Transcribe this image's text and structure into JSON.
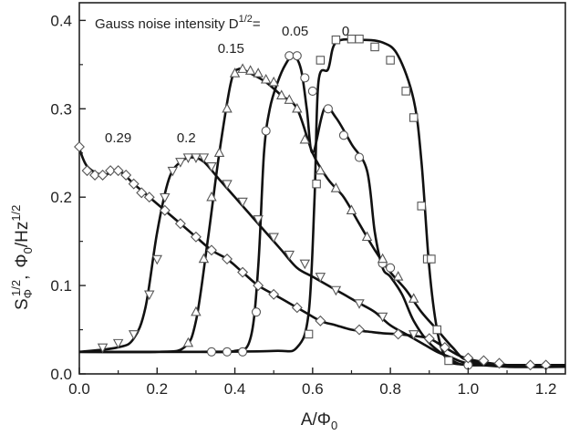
{
  "chart_data": {
    "type": "line",
    "title": "Gauss noise intensity D",
    "title_sup": "1/2",
    "title_suffix": "=",
    "xlabel_main": "A/Φ",
    "xlabel_sub": "0",
    "ylabel_parts": {
      "s": "S",
      "s_sub": "Φ",
      "s_sup": "1/2",
      "sep": ",",
      "phi": "Φ",
      "phi_sub": "0",
      "slash": "/Hz",
      "hz_sup": "1/2"
    },
    "xlim": [
      0.0,
      1.25
    ],
    "ylim": [
      0.0,
      0.42
    ],
    "x_ticks": [
      0.0,
      0.2,
      0.4,
      0.6,
      0.8,
      1.0,
      1.2
    ],
    "x_tick_labels": [
      "0.0",
      "0.2",
      "0.4",
      "0.6",
      "0.8",
      "1.0",
      "1.2"
    ],
    "y_ticks": [
      0.0,
      0.1,
      0.2,
      0.3,
      0.4
    ],
    "y_tick_labels": [
      "0.0",
      "0.1",
      "0.2",
      "0.3",
      "0.4"
    ],
    "grid": false,
    "annotations": [
      {
        "text": "0",
        "x": 0.685,
        "y": 0.383
      },
      {
        "text": "0.05",
        "x": 0.555,
        "y": 0.383
      },
      {
        "text": "0.15",
        "x": 0.39,
        "y": 0.363
      },
      {
        "text": "0.2",
        "x": 0.275,
        "y": 0.262
      },
      {
        "text": "0.29",
        "x": 0.1,
        "y": 0.262
      }
    ],
    "series": [
      {
        "label": "0",
        "marker": "square",
        "curve": [
          [
            0.0,
            0.025
          ],
          [
            0.3,
            0.025
          ],
          [
            0.5,
            0.026
          ],
          [
            0.56,
            0.03
          ],
          [
            0.59,
            0.07
          ],
          [
            0.605,
            0.2
          ],
          [
            0.615,
            0.33
          ],
          [
            0.64,
            0.345
          ],
          [
            0.66,
            0.375
          ],
          [
            0.72,
            0.378
          ],
          [
            0.78,
            0.375
          ],
          [
            0.82,
            0.36
          ],
          [
            0.86,
            0.31
          ],
          [
            0.88,
            0.24
          ],
          [
            0.9,
            0.12
          ],
          [
            0.92,
            0.05
          ],
          [
            0.94,
            0.02
          ],
          [
            0.96,
            0.012
          ],
          [
            1.05,
            0.01
          ],
          [
            1.25,
            0.01
          ]
        ],
        "points": [
          [
            0.59,
            0.045
          ],
          [
            0.61,
            0.215
          ],
          [
            0.62,
            0.355
          ],
          [
            0.66,
            0.378
          ],
          [
            0.7,
            0.379
          ],
          [
            0.72,
            0.379
          ],
          [
            0.76,
            0.37
          ],
          [
            0.8,
            0.355
          ],
          [
            0.84,
            0.32
          ],
          [
            0.86,
            0.29
          ],
          [
            0.88,
            0.19
          ],
          [
            0.895,
            0.13
          ],
          [
            0.905,
            0.13
          ],
          [
            0.92,
            0.05
          ],
          [
            0.95,
            0.015
          ]
        ]
      },
      {
        "label": "0.05",
        "marker": "circle",
        "curve": [
          [
            0.0,
            0.025
          ],
          [
            0.3,
            0.025
          ],
          [
            0.4,
            0.026
          ],
          [
            0.44,
            0.04
          ],
          [
            0.46,
            0.12
          ],
          [
            0.475,
            0.25
          ],
          [
            0.49,
            0.3
          ],
          [
            0.51,
            0.33
          ],
          [
            0.53,
            0.35
          ],
          [
            0.55,
            0.36
          ],
          [
            0.57,
            0.345
          ],
          [
            0.585,
            0.3
          ],
          [
            0.6,
            0.25
          ],
          [
            0.63,
            0.3
          ],
          [
            0.66,
            0.29
          ],
          [
            0.7,
            0.26
          ],
          [
            0.74,
            0.23
          ],
          [
            0.76,
            0.16
          ],
          [
            0.78,
            0.12
          ],
          [
            0.8,
            0.11
          ],
          [
            0.83,
            0.09
          ],
          [
            0.86,
            0.06
          ],
          [
            0.9,
            0.035
          ],
          [
            0.96,
            0.015
          ],
          [
            1.0,
            0.01
          ],
          [
            1.1,
            0.01
          ],
          [
            1.25,
            0.01
          ]
        ],
        "points": [
          [
            0.34,
            0.025
          ],
          [
            0.38,
            0.025
          ],
          [
            0.42,
            0.025
          ],
          [
            0.455,
            0.07
          ],
          [
            0.48,
            0.275
          ],
          [
            0.54,
            0.36
          ],
          [
            0.56,
            0.36
          ],
          [
            0.58,
            0.335
          ],
          [
            0.6,
            0.32
          ],
          [
            0.64,
            0.3
          ],
          [
            0.68,
            0.27
          ],
          [
            0.72,
            0.245
          ],
          [
            0.78,
            0.125
          ],
          [
            0.8,
            0.12
          ],
          [
            1.0,
            0.01
          ]
        ]
      },
      {
        "label": "0.15",
        "marker": "triangle-up",
        "curve": [
          [
            0.0,
            0.025
          ],
          [
            0.2,
            0.025
          ],
          [
            0.27,
            0.03
          ],
          [
            0.3,
            0.06
          ],
          [
            0.33,
            0.15
          ],
          [
            0.36,
            0.25
          ],
          [
            0.39,
            0.33
          ],
          [
            0.41,
            0.345
          ],
          [
            0.44,
            0.34
          ],
          [
            0.48,
            0.33
          ],
          [
            0.52,
            0.315
          ],
          [
            0.56,
            0.3
          ],
          [
            0.6,
            0.25
          ],
          [
            0.64,
            0.22
          ],
          [
            0.68,
            0.2
          ],
          [
            0.72,
            0.17
          ],
          [
            0.76,
            0.14
          ],
          [
            0.8,
            0.115
          ],
          [
            0.84,
            0.095
          ],
          [
            0.88,
            0.07
          ],
          [
            0.92,
            0.05
          ],
          [
            0.96,
            0.03
          ],
          [
            1.0,
            0.015
          ],
          [
            1.1,
            0.01
          ],
          [
            1.25,
            0.01
          ]
        ],
        "points": [
          [
            0.28,
            0.035
          ],
          [
            0.3,
            0.07
          ],
          [
            0.32,
            0.13
          ],
          [
            0.34,
            0.2
          ],
          [
            0.36,
            0.25
          ],
          [
            0.38,
            0.3
          ],
          [
            0.4,
            0.34
          ],
          [
            0.42,
            0.345
          ],
          [
            0.44,
            0.343
          ],
          [
            0.46,
            0.34
          ],
          [
            0.48,
            0.333
          ],
          [
            0.5,
            0.33
          ],
          [
            0.52,
            0.315
          ],
          [
            0.54,
            0.31
          ],
          [
            0.56,
            0.3
          ],
          [
            0.58,
            0.265
          ],
          [
            0.62,
            0.23
          ],
          [
            0.66,
            0.21
          ],
          [
            0.7,
            0.185
          ],
          [
            0.74,
            0.155
          ],
          [
            0.78,
            0.13
          ],
          [
            0.82,
            0.11
          ],
          [
            0.86,
            0.085
          ]
        ]
      },
      {
        "label": "0.2",
        "marker": "triangle-down",
        "curve": [
          [
            0.0,
            0.025
          ],
          [
            0.1,
            0.03
          ],
          [
            0.14,
            0.04
          ],
          [
            0.17,
            0.075
          ],
          [
            0.2,
            0.16
          ],
          [
            0.23,
            0.22
          ],
          [
            0.26,
            0.24
          ],
          [
            0.29,
            0.245
          ],
          [
            0.32,
            0.24
          ],
          [
            0.36,
            0.22
          ],
          [
            0.4,
            0.2
          ],
          [
            0.44,
            0.18
          ],
          [
            0.48,
            0.16
          ],
          [
            0.52,
            0.14
          ],
          [
            0.56,
            0.12
          ],
          [
            0.6,
            0.11
          ],
          [
            0.64,
            0.1
          ],
          [
            0.68,
            0.09
          ],
          [
            0.72,
            0.08
          ],
          [
            0.76,
            0.07
          ],
          [
            0.8,
            0.055
          ],
          [
            0.84,
            0.045
          ],
          [
            0.88,
            0.035
          ],
          [
            0.92,
            0.025
          ],
          [
            0.96,
            0.018
          ],
          [
            1.0,
            0.012
          ],
          [
            1.1,
            0.008
          ],
          [
            1.25,
            0.008
          ]
        ],
        "points": [
          [
            0.06,
            0.03
          ],
          [
            0.1,
            0.035
          ],
          [
            0.14,
            0.045
          ],
          [
            0.18,
            0.09
          ],
          [
            0.2,
            0.13
          ],
          [
            0.22,
            0.2
          ],
          [
            0.24,
            0.23
          ],
          [
            0.26,
            0.24
          ],
          [
            0.28,
            0.245
          ],
          [
            0.3,
            0.245
          ],
          [
            0.32,
            0.245
          ],
          [
            0.34,
            0.235
          ],
          [
            0.38,
            0.215
          ],
          [
            0.42,
            0.195
          ],
          [
            0.46,
            0.175
          ],
          [
            0.5,
            0.155
          ],
          [
            0.54,
            0.135
          ],
          [
            0.58,
            0.125
          ],
          [
            0.62,
            0.11
          ],
          [
            0.66,
            0.095
          ],
          [
            0.72,
            0.08
          ],
          [
            0.78,
            0.065
          ],
          [
            0.86,
            0.045
          ]
        ]
      },
      {
        "label": "0.29",
        "marker": "diamond",
        "curve": [
          [
            0.0,
            0.255
          ],
          [
            0.02,
            0.235
          ],
          [
            0.06,
            0.225
          ],
          [
            0.1,
            0.23
          ],
          [
            0.14,
            0.215
          ],
          [
            0.18,
            0.2
          ],
          [
            0.22,
            0.185
          ],
          [
            0.26,
            0.17
          ],
          [
            0.3,
            0.155
          ],
          [
            0.34,
            0.14
          ],
          [
            0.38,
            0.13
          ],
          [
            0.42,
            0.115
          ],
          [
            0.46,
            0.1
          ],
          [
            0.5,
            0.09
          ],
          [
            0.54,
            0.08
          ],
          [
            0.58,
            0.07
          ],
          [
            0.62,
            0.06
          ],
          [
            0.66,
            0.055
          ],
          [
            0.7,
            0.05
          ],
          [
            0.74,
            0.048
          ],
          [
            0.78,
            0.046
          ],
          [
            0.82,
            0.045
          ],
          [
            0.86,
            0.043
          ],
          [
            0.9,
            0.04
          ],
          [
            0.94,
            0.03
          ],
          [
            0.98,
            0.02
          ],
          [
            1.02,
            0.015
          ],
          [
            1.1,
            0.01
          ],
          [
            1.25,
            0.01
          ]
        ],
        "points": [
          [
            0.0,
            0.257
          ],
          [
            0.02,
            0.23
          ],
          [
            0.04,
            0.225
          ],
          [
            0.06,
            0.225
          ],
          [
            0.08,
            0.23
          ],
          [
            0.1,
            0.23
          ],
          [
            0.12,
            0.225
          ],
          [
            0.14,
            0.215
          ],
          [
            0.16,
            0.205
          ],
          [
            0.18,
            0.2
          ],
          [
            0.22,
            0.185
          ],
          [
            0.26,
            0.17
          ],
          [
            0.3,
            0.155
          ],
          [
            0.34,
            0.14
          ],
          [
            0.38,
            0.13
          ],
          [
            0.42,
            0.115
          ],
          [
            0.46,
            0.1
          ],
          [
            0.5,
            0.09
          ],
          [
            0.56,
            0.075
          ],
          [
            0.62,
            0.06
          ],
          [
            0.72,
            0.05
          ],
          [
            0.82,
            0.045
          ],
          [
            0.9,
            0.04
          ],
          [
            0.94,
            0.03
          ],
          [
            1.0,
            0.018
          ],
          [
            1.04,
            0.015
          ],
          [
            1.08,
            0.012
          ],
          [
            1.16,
            0.01
          ],
          [
            1.2,
            0.01
          ]
        ]
      }
    ]
  }
}
